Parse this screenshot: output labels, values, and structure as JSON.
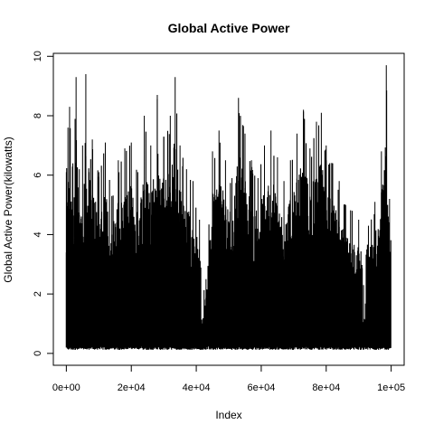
{
  "chart_data": {
    "type": "line",
    "title": "Global Active Power",
    "xlabel": "Index",
    "ylabel": "Global Active Power(kilowatts)",
    "xlim": [
      -4000,
      104000
    ],
    "ylim": [
      -0.4,
      10.1
    ],
    "x_ticks": [
      {
        "value": 0,
        "label": "0e+00"
      },
      {
        "value": 20000,
        "label": "2e+04"
      },
      {
        "value": 40000,
        "label": "4e+04"
      },
      {
        "value": 60000,
        "label": "6e+04"
      },
      {
        "value": 80000,
        "label": "8e+04"
      },
      {
        "value": 100000,
        "label": "1e+05"
      }
    ],
    "y_ticks": [
      {
        "value": 0,
        "label": "0"
      },
      {
        "value": 2,
        "label": "2"
      },
      {
        "value": 4,
        "label": "4"
      },
      {
        "value": 6,
        "label": "6"
      },
      {
        "value": 8,
        "label": "8"
      },
      {
        "value": 10,
        "label": "10"
      }
    ],
    "series": [
      {
        "name": "Global Active Power",
        "color": "#000000",
        "n_points": 100000,
        "approx_baseline": 0.2,
        "envelope_peaks": [
          [
            0,
            6.1
          ],
          [
            500,
            7.6
          ],
          [
            1000,
            8.3
          ],
          [
            2000,
            6.4
          ],
          [
            3000,
            9.3
          ],
          [
            4000,
            6.2
          ],
          [
            5000,
            7.0
          ],
          [
            6000,
            9.4
          ],
          [
            7000,
            6.1
          ],
          [
            8000,
            7.2
          ],
          [
            10000,
            6.1
          ],
          [
            12000,
            7.1
          ],
          [
            14000,
            5.3
          ],
          [
            16000,
            6.5
          ],
          [
            18000,
            6.9
          ],
          [
            20000,
            7.1
          ],
          [
            22000,
            6.1
          ],
          [
            24000,
            8.0
          ],
          [
            26000,
            7.0
          ],
          [
            28000,
            8.7
          ],
          [
            30000,
            7.3
          ],
          [
            32000,
            8.0
          ],
          [
            33500,
            9.3
          ],
          [
            35000,
            7.0
          ],
          [
            37000,
            6.2
          ],
          [
            39000,
            5.8
          ],
          [
            41000,
            4.5
          ],
          [
            43000,
            2.5
          ],
          [
            45000,
            6.8
          ],
          [
            47000,
            7.5
          ],
          [
            49000,
            6.5
          ],
          [
            51000,
            5.9
          ],
          [
            53000,
            8.6
          ],
          [
            55000,
            7.4
          ],
          [
            57000,
            6.5
          ],
          [
            59000,
            5.9
          ],
          [
            61000,
            7.0
          ],
          [
            63000,
            7.5
          ],
          [
            65000,
            6.6
          ],
          [
            67000,
            5.8
          ],
          [
            69000,
            6.5
          ],
          [
            71000,
            7.4
          ],
          [
            73000,
            8.2
          ],
          [
            75000,
            6.9
          ],
          [
            77000,
            7.8
          ],
          [
            78500,
            8.1
          ],
          [
            80000,
            7.0
          ],
          [
            82000,
            6.4
          ],
          [
            84000,
            5.8
          ],
          [
            86000,
            5.0
          ],
          [
            88000,
            4.8
          ],
          [
            90000,
            4.5
          ],
          [
            91500,
            2.3
          ],
          [
            93000,
            4.3
          ],
          [
            95000,
            5.1
          ],
          [
            97000,
            6.8
          ],
          [
            98500,
            9.7
          ],
          [
            99500,
            5.2
          ]
        ],
        "gaps": [
          {
            "start": 41500,
            "end": 42300
          },
          {
            "start": 91200,
            "end": 92000
          }
        ]
      }
    ]
  }
}
